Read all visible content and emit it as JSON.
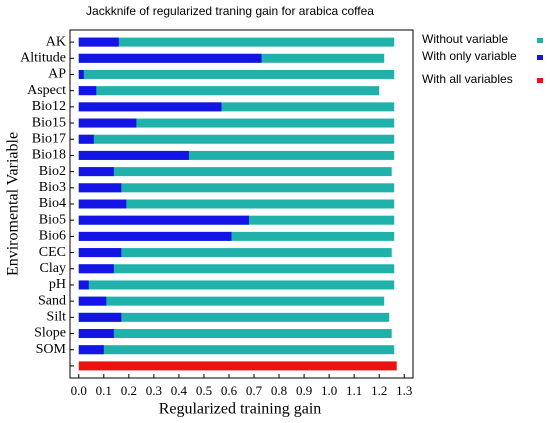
{
  "chart_data": {
    "type": "bar",
    "orientation": "horizontal",
    "title": "Jackknife of regularized traning gain for arabica coffea",
    "xlabel": "Regularized training gain",
    "ylabel": "Enviromental Variable",
    "categories": [
      "AK",
      "Altitude",
      "AP",
      "Aspect",
      "Bio12",
      "Bio15",
      "Bio17",
      "Bio18",
      "Bio2",
      "Bio3",
      "Bio4",
      "Bio5",
      "Bio6",
      "CEC",
      "Clay",
      "pH",
      "Sand",
      "Silt",
      "Slope",
      "SOM",
      null
    ],
    "series": [
      {
        "name": "Without variable",
        "color": "#20b2aa",
        "values": [
          1.26,
          1.22,
          1.26,
          1.2,
          1.26,
          1.26,
          1.26,
          1.26,
          1.25,
          1.26,
          1.26,
          1.26,
          1.26,
          1.25,
          1.26,
          1.26,
          1.22,
          1.24,
          1.25,
          1.26,
          null
        ]
      },
      {
        "name": "With only variable",
        "color": "#1414e6",
        "values": [
          0.16,
          0.73,
          0.02,
          0.07,
          0.57,
          0.23,
          0.06,
          0.44,
          0.14,
          0.17,
          0.19,
          0.68,
          0.61,
          0.17,
          0.14,
          0.04,
          0.11,
          0.17,
          0.14,
          0.1,
          null
        ]
      },
      {
        "name": "With all variables",
        "color": "#ee1111",
        "values": [
          null,
          null,
          null,
          null,
          null,
          null,
          null,
          null,
          null,
          null,
          null,
          null,
          null,
          null,
          null,
          null,
          null,
          null,
          null,
          null,
          1.27
        ]
      }
    ],
    "xlim": [
      -0.035,
      1.335
    ],
    "xticks": [
      {
        "value": 0,
        "label": "0.0"
      },
      0.1,
      0.2,
      0.3,
      0.4,
      0.5,
      0.6,
      0.7,
      0.8,
      0.9,
      {
        "value": 1,
        "label": "1.0"
      },
      1.1,
      1.2,
      1.3
    ],
    "legend": "right"
  }
}
